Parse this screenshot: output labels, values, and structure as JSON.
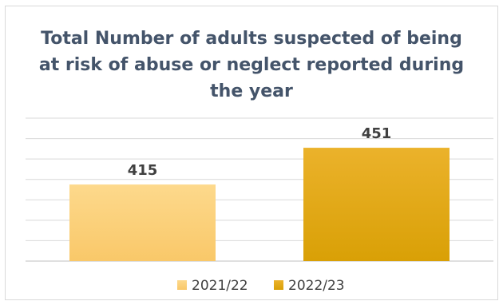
{
  "chart_data": {
    "type": "bar",
    "title_lines": [
      "Total Number of adults suspected of being",
      "at risk of abuse or neglect reported during",
      "the year"
    ],
    "categories": [
      "2021/22",
      "2022/23"
    ],
    "values": [
      415,
      451
    ],
    "data_labels": [
      "415",
      "451"
    ],
    "colors": [
      "#FDD98C",
      "#E9AE1A"
    ],
    "legend": [
      {
        "label": "2021/22",
        "color": "#FDD98C"
      },
      {
        "label": "2022/23",
        "color": "#E9AE1A"
      }
    ],
    "legend_position": "bottom",
    "grid": true,
    "ylim": [
      340,
      480
    ],
    "xlabel": "",
    "ylabel": ""
  }
}
